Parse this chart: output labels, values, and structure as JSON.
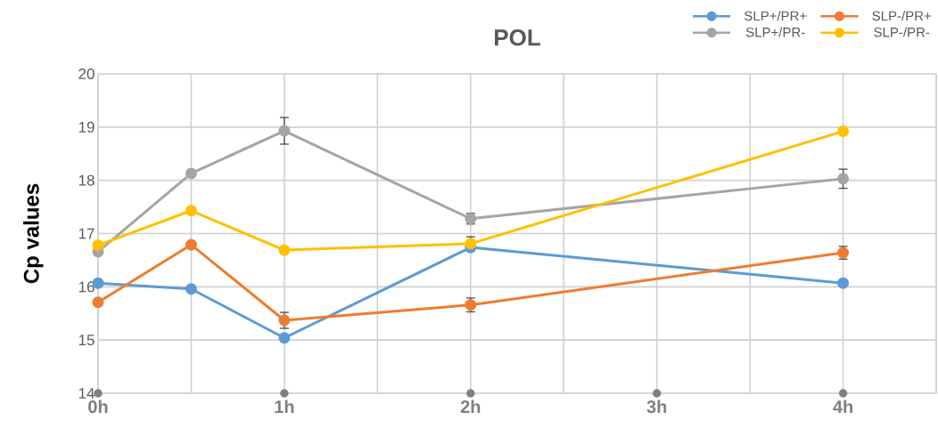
{
  "chart_data": {
    "type": "line",
    "title": "POL",
    "ylabel": "Cp values",
    "x": [
      0,
      0.5,
      1,
      2,
      4
    ],
    "xlim": [
      0,
      4.5
    ],
    "xticks": [
      {
        "value": 0,
        "label": "0h"
      },
      {
        "value": 0.5,
        "label": null
      },
      {
        "value": 1,
        "label": "1h"
      },
      {
        "value": 1.5,
        "label": null
      },
      {
        "value": 2,
        "label": "2h"
      },
      {
        "value": 2.5,
        "label": null
      },
      {
        "value": 3,
        "label": "3h"
      },
      {
        "value": 3.5,
        "label": null
      },
      {
        "value": 4,
        "label": "4h"
      },
      {
        "value": 4.5,
        "label": null
      }
    ],
    "ylim": [
      14,
      20
    ],
    "yticks": [
      14,
      15,
      16,
      17,
      18,
      19,
      20
    ],
    "grid": true,
    "legend": "top right",
    "marker": "circle",
    "line_style": "solid",
    "series": [
      {
        "name": "SLP+/PR+",
        "color": "#5b9bd5",
        "values": [
          16.07,
          15.96,
          15.04,
          16.74,
          16.07
        ]
      },
      {
        "name": "SLP-/PR+",
        "color": "#ed7d31",
        "values": [
          15.71,
          16.79,
          15.37,
          15.66,
          16.64
        ],
        "errors": [
          null,
          null,
          0.15,
          0.13,
          0.12
        ]
      },
      {
        "name": "SLP+/PR-",
        "color": "#a5a5a5",
        "values": [
          16.66,
          18.13,
          18.93,
          17.28,
          18.03
        ],
        "errors": [
          null,
          null,
          0.25,
          0.1,
          0.18
        ]
      },
      {
        "name": "SLP-/PR-",
        "color": "#ffc000",
        "values": [
          16.78,
          17.43,
          16.69,
          16.81,
          18.92
        ],
        "errors": [
          null,
          null,
          null,
          0.13,
          null
        ]
      },
      {
        "type": "scatter",
        "color": "#7f7f7f",
        "x": [
          0,
          1,
          2,
          3,
          4
        ],
        "values": [
          14,
          14,
          14,
          14,
          14
        ]
      }
    ]
  }
}
